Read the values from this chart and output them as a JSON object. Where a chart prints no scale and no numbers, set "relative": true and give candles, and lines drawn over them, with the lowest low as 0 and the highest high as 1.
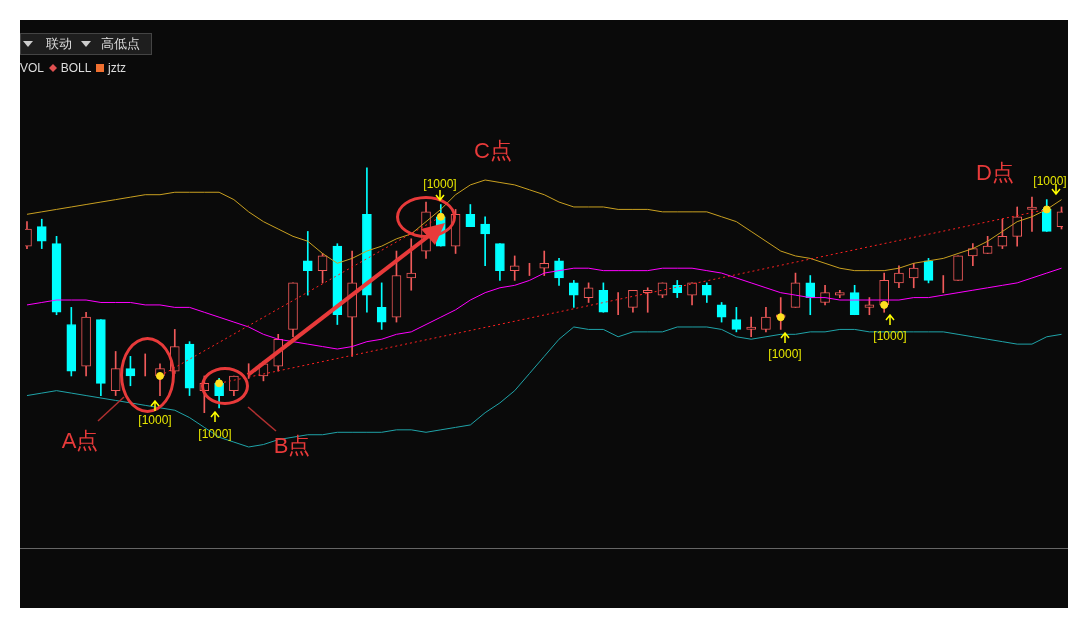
{
  "chart_data": {
    "type": "candlestick",
    "relative": true,
    "tick_labels": false,
    "legend": false,
    "categories": [
      null,
      null,
      null,
      null,
      null,
      null,
      null,
      null,
      null,
      null,
      null,
      null,
      null,
      null,
      null,
      null,
      null,
      null,
      null,
      null,
      null,
      null,
      null,
      null,
      null,
      null,
      null,
      null,
      null,
      null,
      null,
      null,
      null,
      null,
      null,
      null,
      null,
      null,
      null,
      null,
      null,
      null,
      null,
      null,
      null,
      null,
      null,
      null,
      null,
      null,
      null,
      null,
      null,
      null,
      null,
      null,
      null,
      null,
      null,
      null,
      null,
      null,
      null,
      null,
      null,
      null,
      null,
      null,
      null,
      null,
      null
    ],
    "ohlc": [
      [
        0.68,
        0.78,
        0.67,
        0.75
      ],
      [
        0.76,
        0.79,
        0.67,
        0.7
      ],
      [
        0.69,
        0.72,
        0.4,
        0.41
      ],
      [
        0.36,
        0.43,
        0.15,
        0.17
      ],
      [
        0.19,
        0.41,
        0.15,
        0.39
      ],
      [
        0.38,
        0.38,
        0.07,
        0.12
      ],
      [
        0.09,
        0.25,
        0.07,
        0.18
      ],
      [
        0.18,
        0.23,
        0.11,
        0.15
      ],
      [
        0.16,
        0.24,
        0.15,
        0.16
      ],
      [
        0.15,
        0.2,
        0.07,
        0.18
      ],
      [
        0.17,
        0.34,
        0.16,
        0.27
      ],
      [
        0.28,
        0.29,
        0.07,
        0.1
      ],
      [
        0.09,
        0.15,
        0.0,
        0.12
      ],
      [
        0.12,
        0.14,
        0.02,
        0.07
      ],
      [
        0.09,
        0.15,
        0.07,
        0.15
      ],
      [
        0.16,
        0.2,
        0.14,
        0.16
      ],
      [
        0.15,
        0.21,
        0.13,
        0.2
      ],
      [
        0.19,
        0.32,
        0.17,
        0.3
      ],
      [
        0.34,
        0.53,
        0.31,
        0.53
      ],
      [
        0.62,
        0.74,
        0.48,
        0.58
      ],
      [
        0.58,
        0.65,
        0.53,
        0.64
      ],
      [
        0.68,
        0.69,
        0.36,
        0.4
      ],
      [
        0.39,
        0.66,
        0.23,
        0.53
      ],
      [
        0.81,
        1.0,
        0.41,
        0.48
      ],
      [
        0.43,
        0.53,
        0.34,
        0.37
      ],
      [
        0.39,
        0.66,
        0.37,
        0.56
      ],
      [
        0.55,
        0.71,
        0.5,
        0.57
      ],
      [
        0.66,
        0.86,
        0.63,
        0.82
      ],
      [
        0.8,
        0.85,
        0.68,
        0.68
      ],
      [
        0.68,
        0.83,
        0.65,
        0.81
      ],
      [
        0.81,
        0.85,
        0.76,
        0.76
      ],
      [
        0.77,
        0.8,
        0.6,
        0.73
      ],
      [
        0.69,
        0.69,
        0.54,
        0.58
      ],
      [
        0.58,
        0.64,
        0.54,
        0.6
      ],
      [
        0.59,
        0.61,
        0.56,
        0.59
      ],
      [
        0.59,
        0.66,
        0.56,
        0.61
      ],
      [
        0.62,
        0.63,
        0.52,
        0.55
      ],
      [
        0.53,
        0.54,
        0.43,
        0.48
      ],
      [
        0.47,
        0.53,
        0.45,
        0.51
      ],
      [
        0.5,
        0.53,
        0.41,
        0.41
      ],
      [
        0.44,
        0.49,
        0.4,
        0.44
      ],
      [
        0.43,
        0.5,
        0.41,
        0.5
      ],
      [
        0.49,
        0.51,
        0.41,
        0.5
      ],
      [
        0.48,
        0.53,
        0.47,
        0.53
      ],
      [
        0.52,
        0.54,
        0.47,
        0.49
      ],
      [
        0.48,
        0.53,
        0.44,
        0.53
      ],
      [
        0.52,
        0.53,
        0.45,
        0.48
      ],
      [
        0.44,
        0.45,
        0.37,
        0.39
      ],
      [
        0.38,
        0.43,
        0.33,
        0.34
      ],
      [
        0.34,
        0.39,
        0.31,
        0.35
      ],
      [
        0.34,
        0.43,
        0.33,
        0.39
      ],
      [
        0.39,
        0.47,
        0.34,
        0.4
      ],
      [
        0.43,
        0.57,
        0.43,
        0.53
      ],
      [
        0.53,
        0.56,
        0.4,
        0.47
      ],
      [
        0.45,
        0.52,
        0.44,
        0.49
      ],
      [
        0.48,
        0.5,
        0.47,
        0.49
      ],
      [
        0.49,
        0.52,
        0.4,
        0.4
      ],
      [
        0.43,
        0.47,
        0.4,
        0.44
      ],
      [
        0.44,
        0.57,
        0.41,
        0.54
      ],
      [
        0.53,
        0.6,
        0.51,
        0.57
      ],
      [
        0.55,
        0.61,
        0.51,
        0.59
      ],
      [
        0.62,
        0.63,
        0.53,
        0.54
      ],
      [
        0.55,
        0.56,
        0.49,
        0.55
      ],
      [
        0.54,
        0.64,
        0.54,
        0.64
      ],
      [
        0.64,
        0.69,
        0.6,
        0.67
      ],
      [
        0.65,
        0.72,
        0.65,
        0.68
      ],
      [
        0.68,
        0.79,
        0.67,
        0.72
      ],
      [
        0.72,
        0.84,
        0.68,
        0.8
      ],
      [
        0.83,
        0.88,
        0.74,
        0.84
      ],
      [
        0.83,
        0.87,
        0.74,
        0.74
      ],
      [
        0.76,
        0.84,
        0.75,
        0.82
      ]
    ],
    "colors": [
      "#f05a5a",
      "#00ffff",
      "#00ffff",
      "#00ffff",
      "#f05a5a",
      "#00ffff",
      "#f05a5a",
      "#00ffff",
      "#f05a5a",
      "#f05a5a",
      "#f05a5a",
      "#00ffff",
      "#f05a5a",
      "#00ffff",
      "#f05a5a",
      "#f05a5a",
      "#f05a5a",
      "#f05a5a",
      "#f05a5a",
      "#00ffff",
      "#f05a5a",
      "#00ffff",
      "#f05a5a",
      "#00ffff",
      "#00ffff",
      "#f05a5a",
      "#f05a5a",
      "#f05a5a",
      "#00ffff",
      "#f05a5a",
      "#00ffff",
      "#00ffff",
      "#00ffff",
      "#f05a5a",
      "#f05a5a",
      "#f05a5a",
      "#00ffff",
      "#00ffff",
      "#f05a5a",
      "#00ffff",
      "#f05a5a",
      "#f05a5a",
      "#f05a5a",
      "#f05a5a",
      "#00ffff",
      "#f05a5a",
      "#00ffff",
      "#00ffff",
      "#00ffff",
      "#f05a5a",
      "#f05a5a",
      "#f05a5a",
      "#f05a5a",
      "#00ffff",
      "#f05a5a",
      "#f05a5a",
      "#00ffff",
      "#f05a5a",
      "#f05a5a",
      "#f05a5a",
      "#f05a5a",
      "#00ffff",
      "#f05a5a",
      "#f05a5a",
      "#f05a5a",
      "#f05a5a",
      "#f05a5a",
      "#f05a5a",
      "#f05a5a",
      "#00ffff",
      "#f05a5a"
    ],
    "series": [
      {
        "type": "line",
        "color": "#c9a020",
        "values": [
          0.81,
          0.82,
          0.83,
          0.84,
          0.85,
          0.86,
          0.87,
          0.88,
          0.89,
          0.89,
          0.9,
          0.9,
          0.9,
          0.9,
          0.87,
          0.82,
          0.78,
          0.75,
          0.72,
          0.7,
          0.65,
          0.61,
          0.63,
          0.66,
          0.68,
          0.71,
          0.73,
          0.78,
          0.83,
          0.89,
          0.93,
          0.95,
          0.94,
          0.93,
          0.91,
          0.89,
          0.86,
          0.84,
          0.84,
          0.84,
          0.83,
          0.83,
          0.83,
          0.82,
          0.82,
          0.82,
          0.82,
          0.8,
          0.78,
          0.74,
          0.7,
          0.66,
          0.64,
          0.63,
          0.61,
          0.59,
          0.58,
          0.58,
          0.58,
          0.59,
          0.61,
          0.62,
          0.63,
          0.65,
          0.67,
          0.7,
          0.74,
          0.78,
          0.8,
          0.83,
          0.87
        ]
      },
      {
        "type": "line",
        "color": "#ff00ff",
        "values": [
          0.44,
          0.45,
          0.46,
          0.46,
          0.46,
          0.45,
          0.45,
          0.45,
          0.44,
          0.44,
          0.43,
          0.43,
          0.41,
          0.39,
          0.37,
          0.35,
          0.32,
          0.3,
          0.29,
          0.28,
          0.27,
          0.26,
          0.27,
          0.29,
          0.3,
          0.32,
          0.33,
          0.36,
          0.39,
          0.42,
          0.46,
          0.49,
          0.51,
          0.52,
          0.54,
          0.57,
          0.58,
          0.59,
          0.59,
          0.58,
          0.58,
          0.58,
          0.58,
          0.59,
          0.59,
          0.59,
          0.58,
          0.57,
          0.55,
          0.53,
          0.51,
          0.49,
          0.48,
          0.47,
          0.47,
          0.46,
          0.46,
          0.46,
          0.46,
          0.46,
          0.47,
          0.47,
          0.48,
          0.49,
          0.5,
          0.51,
          0.52,
          0.53,
          0.55,
          0.57,
          0.59
        ]
      },
      {
        "type": "line",
        "color": "#1fa3a8",
        "values": [
          0.07,
          0.08,
          0.09,
          0.08,
          0.07,
          0.06,
          0.05,
          0.04,
          0.03,
          0.02,
          0.01,
          -0.02,
          -0.06,
          -0.1,
          -0.12,
          -0.14,
          -0.13,
          -0.11,
          -0.1,
          -0.09,
          -0.09,
          -0.08,
          -0.08,
          -0.08,
          -0.08,
          -0.07,
          -0.07,
          -0.08,
          -0.07,
          -0.06,
          -0.05,
          0.0,
          0.04,
          0.09,
          0.16,
          0.23,
          0.3,
          0.35,
          0.34,
          0.34,
          0.31,
          0.33,
          0.33,
          0.33,
          0.35,
          0.35,
          0.35,
          0.34,
          0.31,
          0.3,
          0.31,
          0.32,
          0.32,
          0.33,
          0.33,
          0.34,
          0.34,
          0.33,
          0.33,
          0.33,
          0.33,
          0.33,
          0.33,
          0.32,
          0.31,
          0.3,
          0.29,
          0.28,
          0.28,
          0.31,
          0.32
        ]
      },
      {
        "type": "line",
        "color": "#ff2020",
        "line_style": "dotted",
        "values": [
          null,
          null,
          null,
          null,
          null,
          null,
          null,
          null,
          null,
          0.15,
          null,
          null,
          null,
          null,
          null,
          null,
          null,
          null,
          null,
          null,
          null,
          null,
          null,
          null,
          null,
          null,
          null,
          null,
          0.8,
          null,
          null,
          null,
          null,
          null,
          null,
          null,
          null,
          null,
          null,
          null,
          null,
          null,
          null,
          null,
          null,
          null,
          null,
          null,
          null,
          null,
          null,
          null,
          null,
          null,
          null,
          null,
          null,
          null,
          null,
          null,
          null,
          null,
          null,
          null,
          null,
          null,
          null,
          null,
          null,
          null,
          null
        ]
      },
      {
        "type": "line",
        "color": "#ff2020",
        "line_style": "dotted",
        "values": [
          null,
          null,
          null,
          null,
          null,
          null,
          null,
          null,
          null,
          null,
          null,
          null,
          null,
          0.12,
          null,
          null,
          null,
          null,
          null,
          null,
          null,
          null,
          null,
          null,
          null,
          null,
          null,
          null,
          null,
          null,
          null,
          null,
          null,
          null,
          null,
          null,
          null,
          null,
          null,
          null,
          null,
          null,
          null,
          null,
          null,
          null,
          null,
          null,
          null,
          null,
          null,
          null,
          null,
          null,
          null,
          null,
          null,
          null,
          null,
          null,
          null,
          null,
          null,
          null,
          null,
          null,
          null,
          null,
          null,
          0.83,
          null
        ]
      },
      {
        "type": "scatter",
        "color": "#ffe020",
        "marker": "circle",
        "values": [
          null,
          null,
          null,
          null,
          null,
          null,
          null,
          null,
          null,
          0.15,
          null,
          null,
          null,
          0.12,
          null,
          null,
          null,
          null,
          null,
          null,
          null,
          null,
          null,
          null,
          null,
          null,
          null,
          null,
          0.8,
          null,
          null,
          null,
          null,
          null,
          null,
          null,
          null,
          null,
          null,
          null,
          null,
          null,
          null,
          null,
          null,
          null,
          null,
          null,
          null,
          null,
          null,
          0.39,
          null,
          null,
          null,
          null,
          null,
          null,
          0.44,
          null,
          null,
          null,
          null,
          null,
          null,
          null,
          null,
          null,
          null,
          0.83,
          null
        ]
      }
    ],
    "annotations": [
      "联动",
      "高低点",
      "VOL",
      "BOLL",
      "jztz",
      "A点",
      "B点",
      "C点",
      "D点",
      "[1000]",
      "[1000]",
      "[1000]",
      "[1000]",
      "[1000]",
      "[1000]"
    ]
  }
}
